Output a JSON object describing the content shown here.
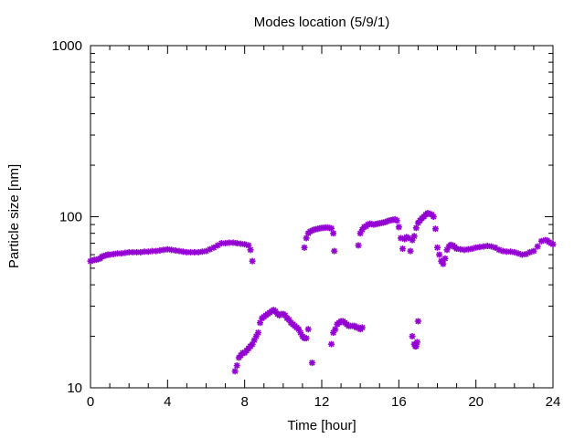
{
  "chart_data": {
    "type": "scatter",
    "title": "Modes location (5/9/1)",
    "xlabel": "Time [hour]",
    "ylabel": "Particle size [nm]",
    "xlim": [
      0,
      24
    ],
    "ylim": [
      10,
      1000
    ],
    "yscale": "log",
    "grid": false,
    "legend": "none",
    "marker": "asterisk",
    "xticks": [
      0,
      4,
      8,
      12,
      16,
      20,
      24
    ],
    "xtick_labels": [
      "0",
      "4",
      "8",
      "12",
      "16",
      "20",
      "24"
    ],
    "yticks": [
      10,
      100,
      1000
    ],
    "ytick_labels": [
      "10",
      "100",
      "1000"
    ],
    "series": [
      {
        "color": "#9400d3",
        "points": [
          [
            0.0,
            55
          ],
          [
            0.1,
            55.5
          ],
          [
            0.2,
            56
          ],
          [
            0.3,
            56
          ],
          [
            0.4,
            56.5
          ],
          [
            0.5,
            57
          ],
          [
            0.6,
            58.5
          ],
          [
            0.7,
            59
          ],
          [
            0.8,
            59.5
          ],
          [
            0.9,
            60
          ],
          [
            1.0,
            60
          ],
          [
            1.2,
            60.5
          ],
          [
            1.4,
            61
          ],
          [
            1.6,
            61
          ],
          [
            1.8,
            61.5
          ],
          [
            2.0,
            62
          ],
          [
            2.2,
            62
          ],
          [
            2.4,
            62
          ],
          [
            2.6,
            62
          ],
          [
            2.8,
            62.5
          ],
          [
            3.0,
            62.5
          ],
          [
            3.2,
            63
          ],
          [
            3.4,
            63
          ],
          [
            3.6,
            63.5
          ],
          [
            3.8,
            64
          ],
          [
            4.0,
            64.5
          ],
          [
            4.2,
            64
          ],
          [
            4.4,
            63.5
          ],
          [
            4.6,
            63
          ],
          [
            4.8,
            62.5
          ],
          [
            5.0,
            62
          ],
          [
            5.2,
            62
          ],
          [
            5.4,
            62
          ],
          [
            5.6,
            62
          ],
          [
            5.8,
            62.5
          ],
          [
            6.0,
            63
          ],
          [
            6.2,
            64.5
          ],
          [
            6.4,
            66
          ],
          [
            6.6,
            68
          ],
          [
            6.8,
            70
          ],
          [
            7.0,
            70
          ],
          [
            7.2,
            70.5
          ],
          [
            7.4,
            70.5
          ],
          [
            7.6,
            70
          ],
          [
            7.8,
            69.5
          ],
          [
            8.0,
            69
          ],
          [
            8.2,
            68
          ],
          [
            8.3,
            64
          ],
          [
            8.4,
            55
          ],
          [
            11.1,
            66
          ],
          [
            11.2,
            75
          ],
          [
            11.3,
            80
          ],
          [
            11.4,
            82
          ],
          [
            11.5,
            83
          ],
          [
            11.6,
            84
          ],
          [
            11.7,
            84.5
          ],
          [
            11.8,
            85
          ],
          [
            11.9,
            85.5
          ],
          [
            12.0,
            86
          ],
          [
            12.1,
            86
          ],
          [
            12.2,
            86.5
          ],
          [
            12.3,
            86.5
          ],
          [
            12.4,
            86
          ],
          [
            12.5,
            85.5
          ],
          [
            12.6,
            80
          ],
          [
            12.65,
            63
          ],
          [
            13.9,
            68
          ],
          [
            14.0,
            80
          ],
          [
            14.1,
            84
          ],
          [
            14.2,
            87
          ],
          [
            14.3,
            88
          ],
          [
            14.4,
            90
          ],
          [
            14.5,
            91
          ],
          [
            14.6,
            90.5
          ],
          [
            14.7,
            90
          ],
          [
            14.8,
            90.5
          ],
          [
            14.9,
            91
          ],
          [
            15.0,
            91.5
          ],
          [
            15.1,
            92
          ],
          [
            15.2,
            92.5
          ],
          [
            15.3,
            93
          ],
          [
            15.4,
            94
          ],
          [
            15.5,
            95
          ],
          [
            15.6,
            95.5
          ],
          [
            15.7,
            96
          ],
          [
            15.8,
            96.5
          ],
          [
            15.9,
            95
          ],
          [
            16.0,
            87
          ],
          [
            16.1,
            75
          ],
          [
            16.2,
            65
          ],
          [
            16.3,
            74
          ],
          [
            16.4,
            76
          ],
          [
            16.5,
            75
          ],
          [
            16.6,
            63
          ],
          [
            16.7,
            73
          ],
          [
            16.8,
            77
          ],
          [
            16.9,
            86
          ],
          [
            17.0,
            92
          ],
          [
            17.1,
            95
          ],
          [
            17.2,
            98
          ],
          [
            17.3,
            100
          ],
          [
            17.4,
            103
          ],
          [
            17.5,
            105
          ],
          [
            17.6,
            104
          ],
          [
            17.7,
            103
          ],
          [
            17.8,
            100
          ],
          [
            17.9,
            85
          ],
          [
            18.0,
            66
          ],
          [
            18.1,
            60
          ],
          [
            18.2,
            55
          ],
          [
            18.3,
            53
          ],
          [
            18.4,
            57
          ],
          [
            18.5,
            64
          ],
          [
            18.6,
            67
          ],
          [
            18.7,
            68.5
          ],
          [
            18.8,
            68
          ],
          [
            18.9,
            66.5
          ],
          [
            19.0,
            65
          ],
          [
            19.2,
            64.5
          ],
          [
            19.4,
            64
          ],
          [
            19.6,
            64.5
          ],
          [
            19.8,
            65
          ],
          [
            20.0,
            66
          ],
          [
            20.2,
            66.5
          ],
          [
            20.4,
            67
          ],
          [
            20.6,
            67.5
          ],
          [
            20.8,
            67
          ],
          [
            21.0,
            66
          ],
          [
            21.2,
            64
          ],
          [
            21.4,
            63
          ],
          [
            21.6,
            62.5
          ],
          [
            21.8,
            62.5
          ],
          [
            22.0,
            62
          ],
          [
            22.2,
            61
          ],
          [
            22.4,
            60
          ],
          [
            22.6,
            60.5
          ],
          [
            22.8,
            62
          ],
          [
            23.0,
            63
          ],
          [
            23.2,
            67
          ],
          [
            23.4,
            72
          ],
          [
            23.6,
            73
          ],
          [
            23.7,
            72.5
          ],
          [
            23.8,
            71
          ],
          [
            23.9,
            70
          ],
          [
            24.0,
            69
          ],
          [
            7.5,
            12.5
          ],
          [
            7.6,
            13.5
          ],
          [
            7.7,
            15
          ],
          [
            7.8,
            15.5
          ],
          [
            7.9,
            16
          ],
          [
            8.0,
            16
          ],
          [
            8.1,
            16.5
          ],
          [
            8.2,
            17
          ],
          [
            8.3,
            17.5
          ],
          [
            8.4,
            18
          ],
          [
            8.5,
            19
          ],
          [
            8.6,
            20
          ],
          [
            8.7,
            21
          ],
          [
            8.8,
            24
          ],
          [
            8.9,
            25.5
          ],
          [
            9.0,
            26
          ],
          [
            9.1,
            26.5
          ],
          [
            9.2,
            27
          ],
          [
            9.3,
            27.5
          ],
          [
            9.4,
            28
          ],
          [
            9.5,
            28.5
          ],
          [
            9.6,
            28
          ],
          [
            9.7,
            27
          ],
          [
            9.8,
            26.5
          ],
          [
            9.9,
            27
          ],
          [
            10.0,
            27
          ],
          [
            10.1,
            26.5
          ],
          [
            10.2,
            25.5
          ],
          [
            10.3,
            25
          ],
          [
            10.4,
            24
          ],
          [
            10.5,
            23.5
          ],
          [
            10.6,
            23
          ],
          [
            10.7,
            22.5
          ],
          [
            10.8,
            22
          ],
          [
            10.9,
            21
          ],
          [
            11.0,
            20
          ],
          [
            11.1,
            19.5
          ],
          [
            11.2,
            19.5
          ],
          [
            11.3,
            22
          ],
          [
            11.5,
            14
          ],
          [
            12.5,
            18
          ],
          [
            12.6,
            21
          ],
          [
            12.7,
            22
          ],
          [
            12.8,
            23.5
          ],
          [
            12.9,
            24
          ],
          [
            13.0,
            24.5
          ],
          [
            13.1,
            24.5
          ],
          [
            13.2,
            24
          ],
          [
            13.3,
            23.5
          ],
          [
            13.4,
            23
          ],
          [
            13.5,
            23
          ],
          [
            13.6,
            23
          ],
          [
            13.7,
            23
          ],
          [
            13.8,
            22.5
          ],
          [
            13.9,
            22.5
          ],
          [
            14.0,
            22
          ],
          [
            14.1,
            22.5
          ],
          [
            16.7,
            20
          ],
          [
            16.8,
            18
          ],
          [
            16.85,
            17.5
          ],
          [
            16.9,
            17.5
          ],
          [
            16.95,
            18.5
          ],
          [
            17.0,
            24.5
          ]
        ]
      }
    ]
  }
}
